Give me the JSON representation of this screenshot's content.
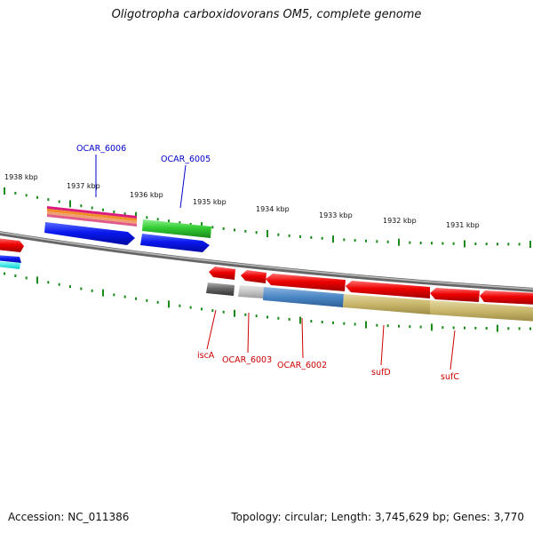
{
  "title": "Oligotropha carboxidovorans OM5, complete genome",
  "ticks": [
    "1938 kbp",
    "1937 kbp",
    "1936 kbp",
    "1935 kbp",
    "1934 kbp",
    "1933 kbp",
    "1932 kbp",
    "1931 kbp"
  ],
  "labels": {
    "forward": [
      "OCAR_6006",
      "OCAR_6005"
    ],
    "reverse": [
      "iscA",
      "OCAR_6003",
      "OCAR_6002",
      "sufD",
      "sufC"
    ]
  },
  "colors": {
    "forward_label": "#0000cc",
    "reverse_label": "#cc0000",
    "tick": "#1a8a1a",
    "backbone": "#888888"
  },
  "footer": {
    "accession": "Accession: NC_011386",
    "topology": "Topology: circular; Length: 3,745,629 bp; Genes: 3,770"
  }
}
